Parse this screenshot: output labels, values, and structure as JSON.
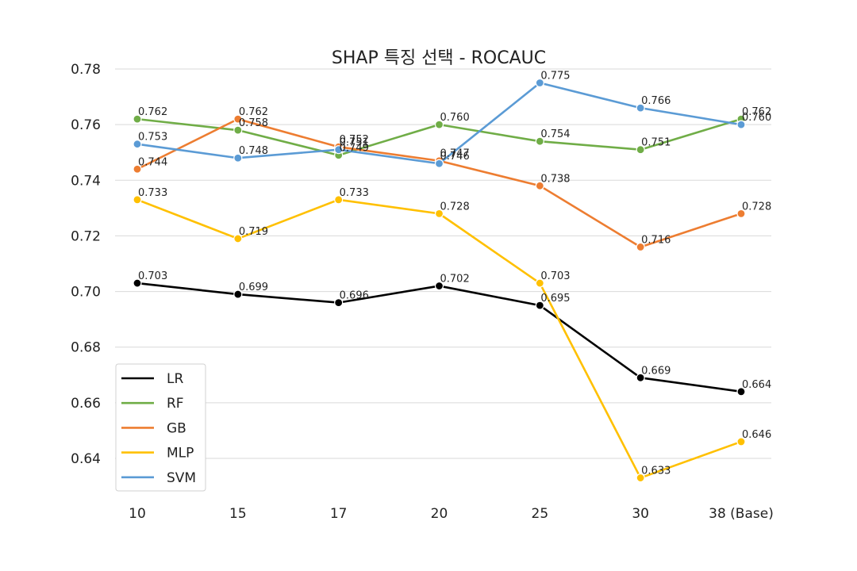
{
  "chart_data": {
    "type": "line",
    "title": "SHAP 특징 선택 - ROCAUC",
    "xlabel": "",
    "ylabel": "",
    "categories": [
      "10",
      "15",
      "17",
      "20",
      "25",
      "30",
      "38 (Base)"
    ],
    "ylim": [
      0.625,
      0.785
    ],
    "yticks": [
      0.64,
      0.66,
      0.68,
      0.7,
      0.72,
      0.74,
      0.76,
      0.78
    ],
    "ytick_labels": [
      "0.64",
      "0.66",
      "0.68",
      "0.70",
      "0.72",
      "0.74",
      "0.76",
      "0.78"
    ],
    "grid": "horizontal",
    "legend_position": "lower-left",
    "series": [
      {
        "name": "LR",
        "color": "#000000",
        "values": [
          0.703,
          0.699,
          0.696,
          0.702,
          0.695,
          0.669,
          0.664
        ],
        "labels": [
          "0.703",
          "0.699",
          "0.696",
          "0.702",
          "0.695",
          "0.669",
          "0.664"
        ]
      },
      {
        "name": "RF",
        "color": "#70ad47",
        "values": [
          0.762,
          0.758,
          0.749,
          0.76,
          0.754,
          0.751,
          0.762
        ],
        "labels": [
          "0.762",
          "0.758",
          "0.749",
          "0.760",
          "0.754",
          "0.751",
          "0.762"
        ]
      },
      {
        "name": "GB",
        "color": "#ed7d31",
        "values": [
          0.744,
          0.762,
          0.752,
          0.747,
          0.738,
          0.716,
          0.728
        ],
        "labels": [
          "0.744",
          "0.762",
          "0.752",
          "0.747",
          "0.738",
          "0.716",
          "0.728"
        ]
      },
      {
        "name": "MLP",
        "color": "#ffc000",
        "values": [
          0.733,
          0.719,
          0.733,
          0.728,
          0.703,
          0.633,
          0.646
        ],
        "labels": [
          "0.733",
          "0.719",
          "0.733",
          "0.728",
          "0.703",
          "0.633",
          "0.646"
        ]
      },
      {
        "name": "SVM",
        "color": "#5b9bd5",
        "values": [
          0.753,
          0.748,
          0.751,
          0.746,
          0.775,
          0.766,
          0.76
        ],
        "labels": [
          "0.753",
          "0.748",
          "0.751",
          "0.746",
          "0.775",
          "0.766",
          "0.760"
        ]
      }
    ]
  }
}
